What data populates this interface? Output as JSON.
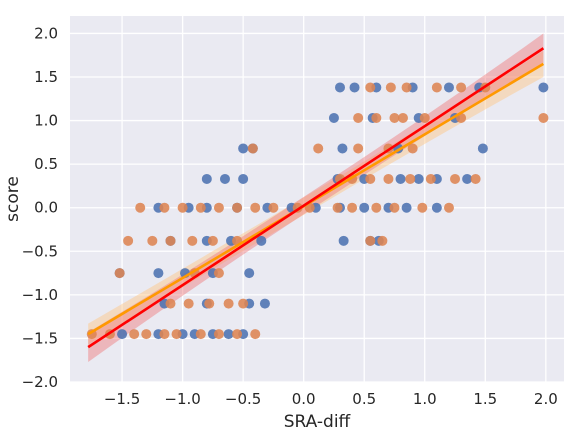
{
  "chart_data": {
    "type": "scatter",
    "xlabel": "SRA-diff",
    "ylabel": "score",
    "xlim": [
      -1.93,
      2.15
    ],
    "ylim": [
      -2.0,
      2.2
    ],
    "xticks": [
      -1.5,
      -1.0,
      -0.5,
      0.0,
      0.5,
      1.0,
      1.5,
      2.0
    ],
    "xtick_labels": [
      "−1.5",
      "−1.0",
      "−0.5",
      "0.0",
      "0.5",
      "1.0",
      "1.5",
      "2.0"
    ],
    "yticks": [
      -2.0,
      -1.5,
      -1.0,
      -0.5,
      0.0,
      0.5,
      1.0,
      1.5,
      2.0
    ],
    "ytick_labels": [
      "−2.0",
      "−1.5",
      "−1.0",
      "−0.5",
      "0.0",
      "0.5",
      "1.0",
      "1.5",
      "2.0"
    ],
    "grid": true,
    "background": "#eaeaf2",
    "series": [
      {
        "color": "#4c72b0",
        "points": [
          [
            -1.5,
            -1.45
          ],
          [
            -1.2,
            -1.45
          ],
          [
            -1.0,
            -1.45
          ],
          [
            -0.9,
            -1.45
          ],
          [
            -0.75,
            -1.45
          ],
          [
            -0.62,
            -1.45
          ],
          [
            -0.5,
            -1.45
          ],
          [
            -1.15,
            -1.1
          ],
          [
            -0.8,
            -1.1
          ],
          [
            -0.45,
            -1.1
          ],
          [
            -0.32,
            -1.1
          ],
          [
            -1.52,
            -0.75
          ],
          [
            -1.2,
            -0.75
          ],
          [
            -0.98,
            -0.75
          ],
          [
            -0.75,
            -0.75
          ],
          [
            -0.45,
            -0.75
          ],
          [
            -1.1,
            -0.38
          ],
          [
            -0.8,
            -0.38
          ],
          [
            -0.6,
            -0.38
          ],
          [
            -0.35,
            -0.38
          ],
          [
            -1.2,
            0.0
          ],
          [
            -0.95,
            0.0
          ],
          [
            -0.8,
            0.0
          ],
          [
            -0.55,
            0.0
          ],
          [
            -0.3,
            0.0
          ],
          [
            -0.1,
            0.0
          ],
          [
            0.1,
            0.0
          ],
          [
            0.3,
            0.0
          ],
          [
            0.5,
            0.0
          ],
          [
            0.7,
            0.0
          ],
          [
            0.85,
            0.0
          ],
          [
            1.1,
            0.0
          ],
          [
            -0.8,
            0.33
          ],
          [
            -0.65,
            0.33
          ],
          [
            -0.5,
            0.33
          ],
          [
            0.28,
            0.33
          ],
          [
            0.5,
            0.33
          ],
          [
            0.8,
            0.33
          ],
          [
            0.95,
            0.33
          ],
          [
            1.1,
            0.33
          ],
          [
            1.35,
            0.33
          ],
          [
            -0.5,
            0.68
          ],
          [
            -0.42,
            0.68
          ],
          [
            0.32,
            0.68
          ],
          [
            0.78,
            0.68
          ],
          [
            1.48,
            0.68
          ],
          [
            0.25,
            1.03
          ],
          [
            0.57,
            1.03
          ],
          [
            0.95,
            1.03
          ],
          [
            1.25,
            1.03
          ],
          [
            0.3,
            1.38
          ],
          [
            0.42,
            1.38
          ],
          [
            0.6,
            1.38
          ],
          [
            0.9,
            1.38
          ],
          [
            1.2,
            1.38
          ],
          [
            1.45,
            1.38
          ],
          [
            1.98,
            1.38
          ],
          [
            0.33,
            -0.38
          ],
          [
            0.55,
            -0.38
          ],
          [
            0.62,
            -0.38
          ]
        ]
      },
      {
        "color": "#dd8452",
        "points": [
          [
            -1.75,
            -1.45
          ],
          [
            -1.6,
            -1.45
          ],
          [
            -1.4,
            -1.45
          ],
          [
            -1.3,
            -1.45
          ],
          [
            -1.15,
            -1.45
          ],
          [
            -1.05,
            -1.45
          ],
          [
            -0.85,
            -1.45
          ],
          [
            -0.7,
            -1.45
          ],
          [
            -0.55,
            -1.45
          ],
          [
            -0.4,
            -1.45
          ],
          [
            -1.1,
            -1.1
          ],
          [
            -0.95,
            -1.1
          ],
          [
            -0.78,
            -1.1
          ],
          [
            -0.62,
            -1.1
          ],
          [
            -0.5,
            -1.1
          ],
          [
            -1.52,
            -0.75
          ],
          [
            -0.9,
            -0.75
          ],
          [
            -0.7,
            -0.75
          ],
          [
            -1.45,
            -0.38
          ],
          [
            -1.25,
            -0.38
          ],
          [
            -1.1,
            -0.38
          ],
          [
            -0.92,
            -0.38
          ],
          [
            -0.75,
            -0.38
          ],
          [
            -0.55,
            -0.38
          ],
          [
            -1.35,
            0.0
          ],
          [
            -1.15,
            0.0
          ],
          [
            -1.0,
            0.0
          ],
          [
            -0.85,
            0.0
          ],
          [
            -0.7,
            0.0
          ],
          [
            -0.55,
            0.0
          ],
          [
            -0.4,
            0.0
          ],
          [
            -0.25,
            0.0
          ],
          [
            -0.05,
            0.0
          ],
          [
            0.05,
            0.0
          ],
          [
            0.28,
            0.0
          ],
          [
            0.4,
            0.0
          ],
          [
            0.6,
            0.0
          ],
          [
            0.75,
            0.0
          ],
          [
            0.98,
            0.0
          ],
          [
            1.2,
            0.0
          ],
          [
            0.3,
            0.33
          ],
          [
            0.4,
            0.33
          ],
          [
            0.55,
            0.33
          ],
          [
            0.7,
            0.33
          ],
          [
            0.88,
            0.33
          ],
          [
            1.05,
            0.33
          ],
          [
            1.25,
            0.33
          ],
          [
            1.42,
            0.33
          ],
          [
            -0.42,
            0.68
          ],
          [
            0.12,
            0.68
          ],
          [
            0.45,
            0.68
          ],
          [
            0.7,
            0.68
          ],
          [
            0.9,
            0.68
          ],
          [
            0.45,
            1.03
          ],
          [
            0.6,
            1.03
          ],
          [
            0.75,
            1.03
          ],
          [
            0.82,
            1.03
          ],
          [
            1.0,
            1.03
          ],
          [
            1.3,
            1.03
          ],
          [
            1.98,
            1.03
          ],
          [
            0.55,
            1.38
          ],
          [
            0.72,
            1.38
          ],
          [
            0.85,
            1.38
          ],
          [
            1.1,
            1.38
          ],
          [
            1.3,
            1.38
          ],
          [
            1.5,
            1.38
          ],
          [
            0.55,
            -0.38
          ],
          [
            0.65,
            -0.38
          ]
        ]
      }
    ],
    "fits": [
      {
        "color": "#ff9900",
        "x": [
          -1.78,
          1.98
        ],
        "y": [
          -1.45,
          1.65
        ],
        "band": [
          0.12,
          0.1,
          0.15
        ],
        "band_color": "#ffc680"
      },
      {
        "color": "#ff0000",
        "x": [
          -1.78,
          1.98
        ],
        "y": [
          -1.6,
          1.83
        ],
        "band": [
          0.17,
          0.1,
          0.17
        ],
        "band_color": "#f07878"
      }
    ]
  }
}
